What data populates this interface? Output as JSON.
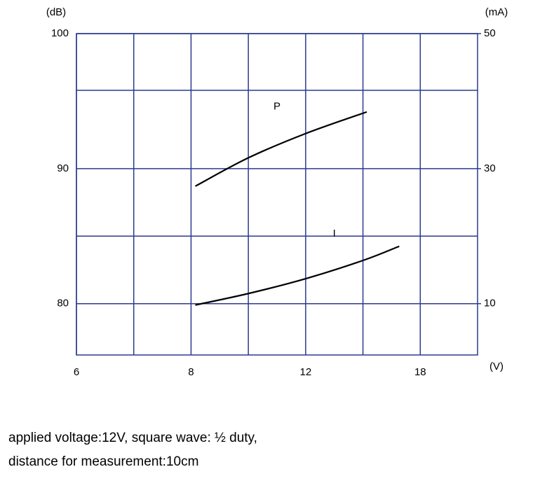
{
  "chart_data": {
    "type": "line",
    "x_label": "(V)",
    "y_label": "(dB)",
    "y2_label": "(mA)",
    "xlim": [
      6,
      21
    ],
    "xticks": [
      6,
      8,
      12,
      18
    ],
    "xgrid": [
      7,
      10,
      15
    ],
    "ylim": [
      76.2,
      100
    ],
    "yticks": [
      100,
      90,
      80
    ],
    "ygrid": [
      95.8,
      85
    ],
    "y2lim": [
      2.4,
      50
    ],
    "y2ticks": [
      50,
      30,
      10
    ],
    "grid": true,
    "grid_color": "#2b3a8c",
    "series": [
      {
        "name": "P",
        "color": "#000000",
        "axis": "y",
        "x": [
          8.15,
          10,
          12,
          15.2
        ],
        "values": [
          88.7,
          90.8,
          92.6,
          94.2
        ]
      },
      {
        "name": "I",
        "color": "#000000",
        "axis": "y2",
        "x": [
          8.15,
          10,
          12,
          15,
          16.9
        ],
        "values": [
          9.8,
          11.5,
          13.7,
          16.4,
          18.5
        ]
      }
    ],
    "note": [
      "applied voltage:12V, square wave: ½ duty,",
      "distance for measurement:10cm"
    ]
  }
}
